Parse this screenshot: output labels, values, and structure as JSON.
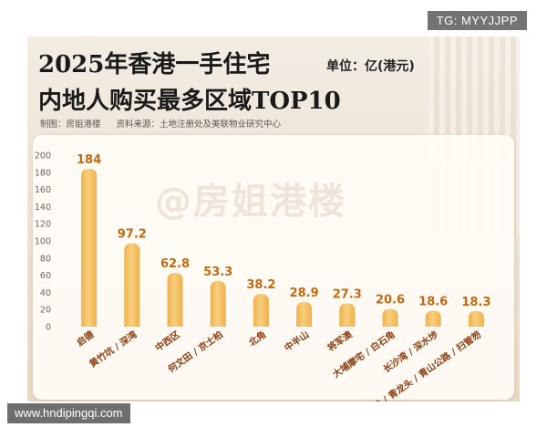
{
  "overlay": {
    "tg_label": "TG: MYYJJPP",
    "url_label": "www.hndipingqi.com"
  },
  "header": {
    "title_line1": "2025年香港一手住宅",
    "title_line2": "内地人购买最多区域TOP10",
    "unit": "单位：亿(港元)",
    "maker": "制图：房姐港楼",
    "source": "资料来源：土地注册处及美联物业研究中心"
  },
  "watermark": "@房姐港楼",
  "colors": {
    "bar": "#f0b04a",
    "bar_highlight": "#f7cf7e",
    "label": "#c26a12",
    "category": "#8a3d0e"
  },
  "chart_data": {
    "type": "bar",
    "title": "2025年香港一手住宅内地人购买最多区域TOP10",
    "ylabel": "单位：亿(港元)",
    "xlabel": "",
    "ylim": [
      0,
      200
    ],
    "yticks": [
      0,
      20,
      40,
      60,
      80,
      100,
      120,
      140,
      160,
      180,
      200
    ],
    "categories": [
      "启德",
      "黄竹坑 / 深湾",
      "中西区",
      "何文田 / 京士柏",
      "北角",
      "中半山",
      "将军澳",
      "大埔摩宅 / 白石角",
      "长沙湾 / 深水埗",
      "启德深井 / 青龙头 / 青山公路 / 扫管笏"
    ],
    "values": [
      184,
      97.2,
      62.8,
      53.3,
      38.2,
      28.9,
      27.3,
      20.6,
      18.6,
      18.3
    ],
    "value_labels": [
      "184",
      "97.2",
      "62.8",
      "53.3",
      "38.2",
      "28.9",
      "27.3",
      "20.6",
      "18.6",
      "18.3"
    ],
    "grid": false,
    "legend": "none"
  }
}
